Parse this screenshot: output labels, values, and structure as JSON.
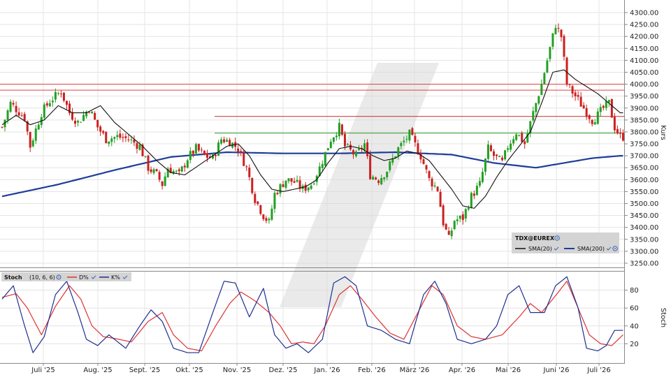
{
  "chart_data": [
    {
      "type": "candlestick",
      "instrument": "TDX@EUREX",
      "ylabel": "Kurs",
      "ylim": [
        3200,
        4300
      ],
      "yticks": [
        3250,
        3300,
        3350,
        3400,
        3450,
        3500,
        3550,
        3600,
        3650,
        3700,
        3750,
        3800,
        3850,
        3900,
        3950,
        4000,
        4050,
        4100,
        4150,
        4200,
        4250,
        4300
      ],
      "ytick_labels": [
        "3250.00",
        "3300.00",
        "3350.00",
        "3400.00",
        "3450.00",
        "3500.00",
        "3550.00",
        "3600.00",
        "3650.00",
        "3700.00",
        "3750.00",
        "3800.00",
        "3850.00",
        "3900.00",
        "3950.00",
        "4000.00",
        "4050.00",
        "4100.00",
        "4150.00",
        "4200.00",
        "4250.00",
        "4300.00"
      ],
      "xticks": [
        "Juli '25",
        "Aug. '25",
        "Sept. '25",
        "Okt. '25",
        "Nov. '25",
        "Dez. '25",
        "Jan. '26",
        "Feb. '26",
        "März '26",
        "Apr. '26",
        "Mai '26",
        "Juni '26",
        "Juli '26"
      ],
      "close_anchors": [
        [
          0,
          3820
        ],
        [
          3,
          3920
        ],
        [
          8,
          3860
        ],
        [
          10,
          3740
        ],
        [
          14,
          3880
        ],
        [
          17,
          3930
        ],
        [
          21,
          3970
        ],
        [
          24,
          3880
        ],
        [
          27,
          3840
        ],
        [
          31,
          3900
        ],
        [
          34,
          3820
        ],
        [
          37,
          3770
        ],
        [
          41,
          3780
        ],
        [
          45,
          3770
        ],
        [
          49,
          3740
        ],
        [
          52,
          3650
        ],
        [
          55,
          3620
        ],
        [
          57,
          3580
        ],
        [
          59,
          3650
        ],
        [
          63,
          3620
        ],
        [
          66,
          3690
        ],
        [
          69,
          3730
        ],
        [
          72,
          3700
        ],
        [
          75,
          3690
        ],
        [
          78,
          3770
        ],
        [
          81,
          3760
        ],
        [
          84,
          3730
        ],
        [
          87,
          3650
        ],
        [
          90,
          3520
        ],
        [
          93,
          3450
        ],
        [
          95,
          3420
        ],
        [
          97,
          3540
        ],
        [
          101,
          3600
        ],
        [
          104,
          3590
        ],
        [
          107,
          3560
        ],
        [
          110,
          3580
        ],
        [
          113,
          3650
        ],
        [
          117,
          3770
        ],
        [
          120,
          3820
        ],
        [
          122,
          3740
        ],
        [
          126,
          3700
        ],
        [
          129,
          3750
        ],
        [
          131,
          3620
        ],
        [
          134,
          3600
        ],
        [
          137,
          3640
        ],
        [
          141,
          3730
        ],
        [
          145,
          3790
        ],
        [
          149,
          3700
        ],
        [
          152,
          3600
        ],
        [
          155,
          3560
        ],
        [
          157,
          3420
        ],
        [
          159,
          3350
        ],
        [
          161,
          3430
        ],
        [
          164,
          3440
        ],
        [
          167,
          3530
        ],
        [
          170,
          3580
        ],
        [
          173,
          3730
        ],
        [
          175,
          3700
        ],
        [
          178,
          3670
        ],
        [
          180,
          3740
        ],
        [
          183,
          3800
        ],
        [
          186,
          3750
        ],
        [
          189,
          3880
        ],
        [
          192,
          4000
        ],
        [
          195,
          4150
        ],
        [
          197,
          4250
        ],
        [
          199,
          4200
        ],
        [
          201,
          4000
        ],
        [
          204,
          3950
        ],
        [
          207,
          3900
        ],
        [
          210,
          3850
        ],
        [
          212,
          3870
        ],
        [
          214,
          3900
        ],
        [
          216,
          3920
        ],
        [
          218,
          3820
        ],
        [
          220,
          3780
        ]
      ],
      "sma20_anchors": [
        [
          0,
          3830
        ],
        [
          5,
          3870
        ],
        [
          10,
          3830
        ],
        [
          15,
          3850
        ],
        [
          20,
          3910
        ],
        [
          25,
          3880
        ],
        [
          30,
          3880
        ],
        [
          35,
          3910
        ],
        [
          40,
          3840
        ],
        [
          45,
          3790
        ],
        [
          50,
          3740
        ],
        [
          55,
          3680
        ],
        [
          60,
          3630
        ],
        [
          65,
          3620
        ],
        [
          70,
          3660
        ],
        [
          75,
          3700
        ],
        [
          80,
          3740
        ],
        [
          84,
          3750
        ],
        [
          88,
          3700
        ],
        [
          92,
          3620
        ],
        [
          96,
          3560
        ],
        [
          100,
          3550
        ],
        [
          104,
          3560
        ],
        [
          108,
          3570
        ],
        [
          112,
          3600
        ],
        [
          116,
          3670
        ],
        [
          120,
          3730
        ],
        [
          124,
          3740
        ],
        [
          128,
          3730
        ],
        [
          132,
          3700
        ],
        [
          136,
          3680
        ],
        [
          140,
          3690
        ],
        [
          144,
          3720
        ],
        [
          148,
          3710
        ],
        [
          152,
          3680
        ],
        [
          156,
          3620
        ],
        [
          160,
          3560
        ],
        [
          164,
          3490
        ],
        [
          168,
          3480
        ],
        [
          172,
          3530
        ],
        [
          176,
          3610
        ],
        [
          180,
          3680
        ],
        [
          184,
          3740
        ],
        [
          188,
          3800
        ],
        [
          192,
          3920
        ],
        [
          196,
          4050
        ],
        [
          200,
          4060
        ],
        [
          204,
          4020
        ],
        [
          208,
          3990
        ],
        [
          212,
          3960
        ],
        [
          216,
          3920
        ],
        [
          220,
          3880
        ]
      ],
      "sma200_anchors": [
        [
          0,
          3530
        ],
        [
          20,
          3580
        ],
        [
          40,
          3640
        ],
        [
          60,
          3695
        ],
        [
          80,
          3715
        ],
        [
          100,
          3710
        ],
        [
          120,
          3710
        ],
        [
          140,
          3715
        ],
        [
          160,
          3705
        ],
        [
          175,
          3670
        ],
        [
          190,
          3650
        ],
        [
          200,
          3670
        ],
        [
          210,
          3690
        ],
        [
          220,
          3700
        ]
      ],
      "horizontal_lines": [
        {
          "value": 4000,
          "color": "#e04040"
        },
        {
          "value": 3975,
          "color": "#e04040"
        },
        {
          "value": 3865,
          "color": "#c03030"
        },
        {
          "value": 3795,
          "color": "#2a9d2a"
        }
      ],
      "legend": {
        "title": "TDX@EUREX",
        "items": [
          {
            "label": "SMA(20)",
            "color": "#111111"
          },
          {
            "label": "SMA(200)",
            "color": "#1f3d99"
          }
        ]
      },
      "colors": {
        "up": "#22a022",
        "down": "#cc1f1f",
        "sma20": "#111111",
        "sma200": "#1f3d99"
      }
    },
    {
      "type": "line",
      "indicator": "Stoch",
      "params": "(10, 6, 6)",
      "ylabel": "Stoch",
      "ylim": [
        0,
        100
      ],
      "yticks": [
        20,
        40,
        60,
        80
      ],
      "ytick_labels": [
        "20",
        "40",
        "60",
        "80"
      ],
      "series": [
        {
          "name": "D%",
          "color": "#dd3333",
          "anchors": [
            [
              0,
              72
            ],
            [
              5,
              76
            ],
            [
              9,
              60
            ],
            [
              14,
              30
            ],
            [
              19,
              62
            ],
            [
              24,
              85
            ],
            [
              28,
              70
            ],
            [
              32,
              40
            ],
            [
              36,
              28
            ],
            [
              40,
              26
            ],
            [
              46,
              22
            ],
            [
              52,
              45
            ],
            [
              57,
              55
            ],
            [
              61,
              30
            ],
            [
              66,
              15
            ],
            [
              71,
              12
            ],
            [
              76,
              40
            ],
            [
              81,
              65
            ],
            [
              85,
              78
            ],
            [
              90,
              68
            ],
            [
              95,
              55
            ],
            [
              99,
              40
            ],
            [
              103,
              20
            ],
            [
              107,
              22
            ],
            [
              111,
              20
            ],
            [
              115,
              40
            ],
            [
              120,
              75
            ],
            [
              124,
              85
            ],
            [
              128,
              70
            ],
            [
              133,
              50
            ],
            [
              138,
              32
            ],
            [
              143,
              25
            ],
            [
              148,
              55
            ],
            [
              153,
              85
            ],
            [
              157,
              75
            ],
            [
              162,
              40
            ],
            [
              167,
              28
            ],
            [
              172,
              25
            ],
            [
              178,
              30
            ],
            [
              184,
              50
            ],
            [
              188,
              65
            ],
            [
              192,
              55
            ],
            [
              196,
              70
            ],
            [
              201,
              90
            ],
            [
              205,
              60
            ],
            [
              209,
              30
            ],
            [
              213,
              20
            ],
            [
              217,
              18
            ],
            [
              221,
              30
            ]
          ]
        },
        {
          "name": "K%",
          "color": "#1f2f8f",
          "anchors": [
            [
              0,
              70
            ],
            [
              4,
              85
            ],
            [
              8,
              40
            ],
            [
              11,
              10
            ],
            [
              15,
              28
            ],
            [
              19,
              75
            ],
            [
              23,
              90
            ],
            [
              27,
              55
            ],
            [
              30,
              25
            ],
            [
              34,
              18
            ],
            [
              38,
              30
            ],
            [
              44,
              15
            ],
            [
              49,
              40
            ],
            [
              53,
              58
            ],
            [
              57,
              45
            ],
            [
              61,
              15
            ],
            [
              66,
              10
            ],
            [
              70,
              10
            ],
            [
              75,
              55
            ],
            [
              79,
              90
            ],
            [
              83,
              88
            ],
            [
              88,
              50
            ],
            [
              93,
              82
            ],
            [
              97,
              30
            ],
            [
              101,
              15
            ],
            [
              105,
              20
            ],
            [
              109,
              10
            ],
            [
              114,
              25
            ],
            [
              118,
              88
            ],
            [
              122,
              95
            ],
            [
              126,
              85
            ],
            [
              130,
              40
            ],
            [
              135,
              35
            ],
            [
              140,
              25
            ],
            [
              145,
              20
            ],
            [
              150,
              75
            ],
            [
              154,
              90
            ],
            [
              158,
              65
            ],
            [
              162,
              25
            ],
            [
              167,
              20
            ],
            [
              172,
              25
            ],
            [
              176,
              40
            ],
            [
              180,
              75
            ],
            [
              184,
              85
            ],
            [
              188,
              55
            ],
            [
              193,
              55
            ],
            [
              197,
              85
            ],
            [
              201,
              95
            ],
            [
              205,
              60
            ],
            [
              208,
              15
            ],
            [
              212,
              12
            ],
            [
              215,
              18
            ],
            [
              218,
              35
            ],
            [
              221,
              35
            ]
          ]
        }
      ]
    }
  ],
  "stoch_legend": {
    "title": "Stoch",
    "params": "(10, 6, 6)",
    "d_label": "D%",
    "k_label": "K%"
  },
  "icons": [
    "settings-icon",
    "check-icon"
  ]
}
